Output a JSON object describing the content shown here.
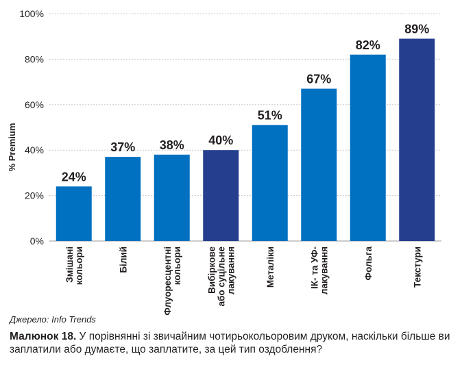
{
  "chart_data": {
    "type": "bar",
    "ylabel": "% Premium",
    "ylim": [
      0,
      100
    ],
    "yticks": [
      "0%",
      "20%",
      "40%",
      "60%",
      "80%",
      "100%"
    ],
    "grid": true,
    "categories": [
      [
        "Змішані",
        "кольори"
      ],
      [
        "Білий"
      ],
      [
        "Флуоресцентні",
        "кольори"
      ],
      [
        "Вибіркове",
        "або суцільне",
        "лакування"
      ],
      [
        "Металіки"
      ],
      [
        "ІК- та УФ-",
        "лакування"
      ],
      [
        "Фольга"
      ],
      [
        "Текстури"
      ]
    ],
    "values": [
      24,
      37,
      38,
      40,
      51,
      67,
      82,
      89
    ],
    "value_labels": [
      "24%",
      "37%",
      "38%",
      "40%",
      "51%",
      "67%",
      "82%",
      "89%"
    ],
    "bar_colors": [
      "#0070c0",
      "#0070c0",
      "#0070c0",
      "#253f8e",
      "#0070c0",
      "#0070c0",
      "#0070c0",
      "#253f8e"
    ]
  },
  "source": "Джерело: Info Trends",
  "caption": {
    "label": "Малюнок 18.",
    "text": " У порівнянні зі звичайним чотирьокольоровим друком, наскільки більше ви заплатили або думаєте, що заплатите, за цей тип оздоблення?"
  },
  "colors": {
    "grid": "#c8c8c8",
    "text": "#231f20"
  }
}
